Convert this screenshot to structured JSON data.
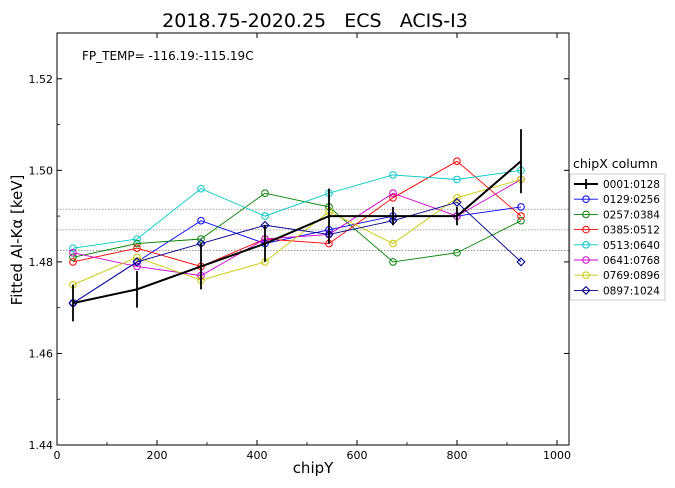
{
  "chart_data": {
    "type": "line",
    "title": "2018.75-2020.25   ECS   ACIS-I3",
    "xlabel": "chipY",
    "ylabel": "Fitted Al-Kα [keV]",
    "annotation": "FP_TEMP= -116.19:-115.19C",
    "xlim": [
      0,
      1024
    ],
    "ylim": [
      1.44,
      1.53
    ],
    "xticks": [
      0,
      200,
      400,
      600,
      800,
      1000
    ],
    "yticks": [
      1.44,
      1.46,
      1.48,
      1.5,
      1.52
    ],
    "xtick_labels": [
      "0",
      "200",
      "400",
      "600",
      "800",
      "1000"
    ],
    "ytick_labels": [
      "1.44",
      "1.46",
      "1.48",
      "1.50",
      "1.52"
    ],
    "reference_lines": [
      1.4825,
      1.487,
      1.4915
    ],
    "grid": false,
    "legend_title": "chipX column",
    "legend_position": "right, outside plot",
    "x": [
      32,
      160,
      288,
      416,
      544,
      672,
      800,
      928
    ],
    "series": [
      {
        "name": "0001:0128",
        "color": "#000000",
        "marker": "errorbar",
        "values": [
          1.471,
          1.474,
          1.479,
          1.484,
          1.49,
          1.49,
          1.49,
          1.502
        ],
        "errors": [
          0.004,
          0.004,
          0.005,
          0.004,
          0.006,
          0.002,
          0.002,
          0.007
        ]
      },
      {
        "name": "0129:0256",
        "color": "#0000ff",
        "marker": "circle",
        "values": [
          1.471,
          1.48,
          1.489,
          1.484,
          1.487,
          1.49,
          1.49,
          1.492
        ]
      },
      {
        "name": "0257:0384",
        "color": "#008000",
        "marker": "circle",
        "values": [
          1.481,
          1.484,
          1.485,
          1.495,
          1.492,
          1.48,
          1.482,
          1.489
        ]
      },
      {
        "name": "0385:0512",
        "color": "#ff0000",
        "marker": "circle",
        "values": [
          1.48,
          1.483,
          1.479,
          1.485,
          1.484,
          1.494,
          1.502,
          1.49
        ]
      },
      {
        "name": "0513:0640",
        "color": "#00c8c8",
        "marker": "circle",
        "values": [
          1.483,
          1.485,
          1.496,
          1.49,
          1.495,
          1.499,
          1.498,
          1.5
        ]
      },
      {
        "name": "0641:0768",
        "color": "#cc00cc",
        "marker": "circle",
        "values": [
          1.482,
          1.479,
          1.477,
          1.485,
          1.486,
          1.495,
          1.49,
          1.498
        ]
      },
      {
        "name": "0769:0896",
        "color": "#c8c800",
        "marker": "circle",
        "values": [
          1.475,
          1.481,
          1.476,
          1.48,
          1.491,
          1.484,
          1.494,
          1.498
        ]
      },
      {
        "name": "0897:1024",
        "color": "#00008b",
        "marker": "diamond",
        "values": [
          1.471,
          1.48,
          1.484,
          1.488,
          1.486,
          1.489,
          1.493,
          1.48
        ]
      }
    ]
  }
}
